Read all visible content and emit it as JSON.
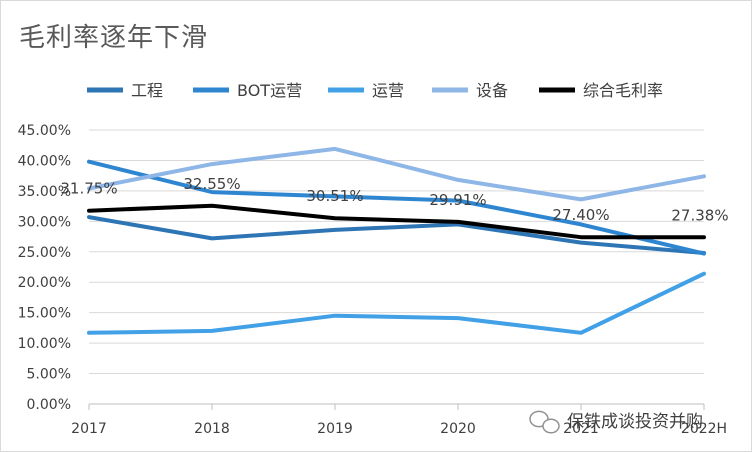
{
  "chart_data": {
    "type": "line",
    "title": "毛利率逐年下滑",
    "categories": [
      "2017",
      "2018",
      "2019",
      "2020",
      "2021",
      "2022H"
    ],
    "ylim": [
      0,
      45
    ],
    "yticks": [
      "0.00%",
      "5.00%",
      "10.00%",
      "15.00%",
      "20.00%",
      "25.00%",
      "30.00%",
      "35.00%",
      "40.00%",
      "45.00%"
    ],
    "grid": true,
    "legend_position": "top",
    "series": [
      {
        "name": "工程",
        "color": "#2E75B6",
        "values": [
          30.7,
          27.2,
          28.6,
          29.5,
          26.5,
          24.8
        ]
      },
      {
        "name": "BOT运营",
        "color": "#2F86D0",
        "values": [
          39.8,
          34.8,
          34.1,
          33.4,
          29.5,
          24.7
        ]
      },
      {
        "name": "运营",
        "color": "#41A0E6",
        "values": [
          11.7,
          12.0,
          14.5,
          14.1,
          11.7,
          21.4
        ]
      },
      {
        "name": "设备",
        "color": "#8EB6E6",
        "values": [
          35.4,
          39.4,
          41.9,
          36.8,
          33.6,
          37.4
        ]
      },
      {
        "name": "综合毛利率",
        "color": "#000000",
        "values": [
          31.75,
          32.55,
          30.51,
          29.91,
          27.4,
          27.38
        ],
        "labels": [
          "31.75%",
          "32.55%",
          "30.51%",
          "29.91%",
          "27.40%",
          "27.38%"
        ]
      }
    ],
    "watermark": "保铁成谈投资并购"
  }
}
